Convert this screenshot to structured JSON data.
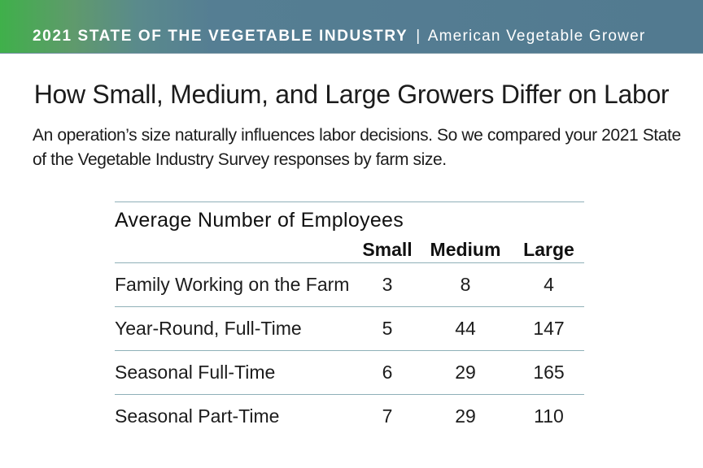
{
  "banner": {
    "title": "2021 STATE OF THE VEGETABLE INDUSTRY",
    "separator": "|",
    "publication": "American Vegetable Grower"
  },
  "headline": "How Small, Medium, and Large Growers Differ on Labor",
  "intro": "An operation’s size naturally influences labor decisions. So we compared your 2021 State of the Vegetable Industry Survey responses by farm size.",
  "table": {
    "title": "Average Number of Employees",
    "columns": [
      "Small",
      "Medium",
      "Large"
    ],
    "rows": [
      {
        "label": "Family Working on the Farm",
        "small": "3",
        "medium": "8",
        "large": "4"
      },
      {
        "label": "Year-Round, Full-Time",
        "small": "5",
        "medium": "44",
        "large": "147"
      },
      {
        "label": "Seasonal Full-Time",
        "small": "6",
        "medium": "29",
        "large": "165"
      },
      {
        "label": "Seasonal Part-Time",
        "small": "7",
        "medium": "29",
        "large": "110"
      }
    ]
  },
  "colors": {
    "banner_green": "#3fb04a",
    "banner_blue": "#527a90",
    "rule": "#8fb0b8"
  }
}
